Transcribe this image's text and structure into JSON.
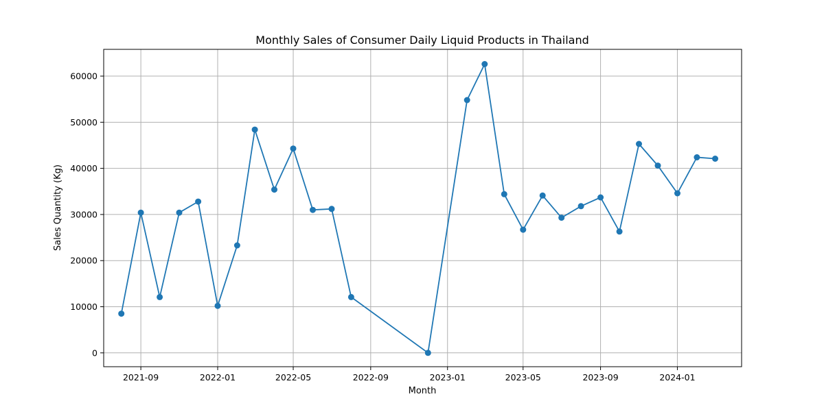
{
  "chart_data": {
    "type": "line",
    "title": "Monthly Sales of Consumer Daily Liquid Products in Thailand",
    "xlabel": "Month",
    "ylabel": "Sales Quantity (Kg)",
    "x_tick_labels": [
      "2021-09",
      "2022-01",
      "2022-05",
      "2022-09",
      "2023-01",
      "2023-05",
      "2023-09",
      "2024-01"
    ],
    "y_ticks": [
      0,
      10000,
      20000,
      30000,
      40000,
      50000,
      60000
    ],
    "ylim": [
      -3000,
      65800
    ],
    "xlim": [
      "2021-07-04",
      "2024-04-12"
    ],
    "grid": true,
    "series": [
      {
        "color": "#1f77b4",
        "marker": "circle",
        "x": [
          "2021-08-01",
          "2021-09-01",
          "2021-10-01",
          "2021-11-01",
          "2021-12-01",
          "2022-01-01",
          "2022-02-01",
          "2022-03-01",
          "2022-04-01",
          "2022-05-01",
          "2022-06-01",
          "2022-07-01",
          "2022-08-01",
          "2022-12-01",
          "2023-02-01",
          "2023-03-01",
          "2023-04-01",
          "2023-05-01",
          "2023-06-01",
          "2023-07-01",
          "2023-08-01",
          "2023-09-01",
          "2023-10-01",
          "2023-11-01",
          "2023-12-01",
          "2024-01-01",
          "2024-02-01",
          "2024-03-01"
        ],
        "values": [
          8500,
          30400,
          12100,
          30400,
          32800,
          10200,
          23300,
          48400,
          35400,
          44300,
          31000,
          31200,
          12100,
          0,
          54800,
          62600,
          34400,
          26700,
          34100,
          29300,
          31800,
          33700,
          26300,
          45300,
          40600,
          34600,
          42400,
          42100
        ]
      }
    ]
  }
}
